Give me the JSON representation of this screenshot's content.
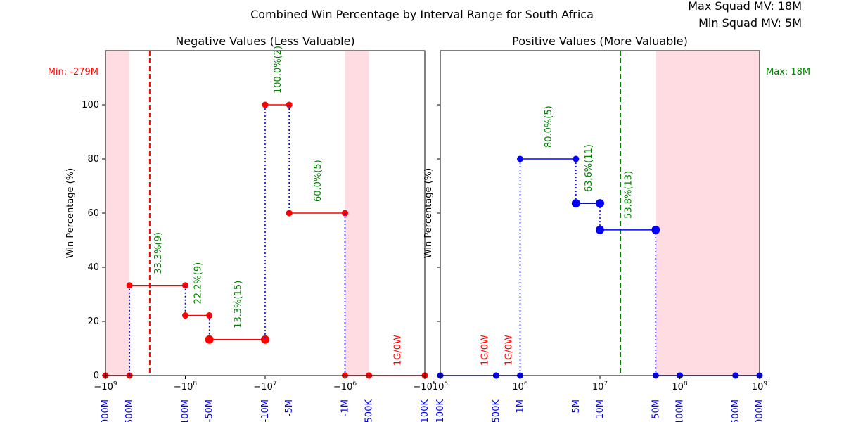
{
  "figure": {
    "title": "Combined Win Percentage by Interval Range for South Africa",
    "corner_max": "Max Squad MV: 18M",
    "corner_min": "Min Squad MV: 5M"
  },
  "colors": {
    "negative_line": "#ff0000",
    "positive_line": "#0000ff",
    "connector": "#0000ff",
    "annotation": "#008000",
    "no_data": "#ff0000",
    "shade": "#ffc0cb",
    "tick_label": "#0000ff",
    "axis": "#000000"
  },
  "chart_data": [
    {
      "type": "line",
      "title": "Negative Values (Less Valuable)",
      "ylabel": "Win Percentage (%)",
      "xscale": "symlog",
      "xlim": [
        -1000000000,
        -100000
      ],
      "ylim": [
        0,
        120
      ],
      "y_ticks": [
        0,
        20,
        40,
        60,
        80,
        100
      ],
      "x_major_ticks": [
        {
          "value": -1000000000,
          "label": "−10^9"
        },
        {
          "value": -100000000,
          "label": "−10^8"
        },
        {
          "value": -10000000,
          "label": "−10^7"
        },
        {
          "value": -1000000,
          "label": "−10^6"
        },
        {
          "value": -100000,
          "label": "−10^5"
        }
      ],
      "interval_ticks": [
        {
          "value": -1000000000,
          "label": "-1000M"
        },
        {
          "value": -500000000,
          "label": "-500M"
        },
        {
          "value": -100000000,
          "label": "-100M"
        },
        {
          "value": -50000000,
          "label": "-50M"
        },
        {
          "value": -10000000,
          "label": "-10M"
        },
        {
          "value": -5000000,
          "label": "-5M"
        },
        {
          "value": -1000000,
          "label": "-1M"
        },
        {
          "value": -500000,
          "label": "-500K"
        },
        {
          "value": -100000,
          "label": "-100K"
        }
      ],
      "segments": [
        {
          "x0": -1000000000,
          "x1": -500000000,
          "win_pct": 0,
          "games": 0
        },
        {
          "x0": -500000000,
          "x1": -100000000,
          "win_pct": 33.3,
          "games": 9,
          "label": "33.3%(9)"
        },
        {
          "x0": -100000000,
          "x1": -50000000,
          "win_pct": 22.2,
          "games": 9,
          "label": "22.2%(9)"
        },
        {
          "x0": -50000000,
          "x1": -10000000,
          "win_pct": 13.3,
          "games": 15,
          "label": "13.3%(15)"
        },
        {
          "x0": -10000000,
          "x1": -5000000,
          "win_pct": 100.0,
          "games": 2,
          "label": "100.0%(2)"
        },
        {
          "x0": -5000000,
          "x1": -1000000,
          "win_pct": 60.0,
          "games": 5,
          "label": "60.0%(5)"
        },
        {
          "x0": -1000000,
          "x1": -500000,
          "win_pct": 0,
          "games": 0
        },
        {
          "x0": -500000,
          "x1": -100000,
          "win_pct": 0,
          "games": 1,
          "label": "1G/0W"
        }
      ],
      "shaded_ranges": [
        [
          -1000000000,
          -500000000
        ],
        [
          -1000000,
          -500000
        ]
      ],
      "reference_line": {
        "value": -279000000,
        "label": "Min: -279M",
        "color": "#ff0000"
      }
    },
    {
      "type": "line",
      "title": "Positive Values (More Valuable)",
      "ylabel": "Win Percentage (%)",
      "xscale": "symlog",
      "xlim": [
        100000,
        1000000000
      ],
      "ylim": [
        0,
        120
      ],
      "y_ticks": [
        0,
        20,
        40,
        60,
        80,
        100
      ],
      "x_major_ticks": [
        {
          "value": 100000,
          "label": "10^5"
        },
        {
          "value": 1000000,
          "label": "10^6"
        },
        {
          "value": 10000000,
          "label": "10^7"
        },
        {
          "value": 100000000,
          "label": "10^8"
        },
        {
          "value": 1000000000,
          "label": "10^9"
        }
      ],
      "interval_ticks": [
        {
          "value": 100000,
          "label": "100K"
        },
        {
          "value": 500000,
          "label": "500K"
        },
        {
          "value": 1000000,
          "label": "1M"
        },
        {
          "value": 5000000,
          "label": "5M"
        },
        {
          "value": 10000000,
          "label": "10M"
        },
        {
          "value": 50000000,
          "label": "50M"
        },
        {
          "value": 100000000,
          "label": "100M"
        },
        {
          "value": 500000000,
          "label": "500M"
        },
        {
          "value": 1000000000,
          "label": "1000M"
        }
      ],
      "segments": [
        {
          "x0": 100000,
          "x1": 500000,
          "win_pct": 0,
          "games": 1,
          "label": "1G/0W"
        },
        {
          "x0": 500000,
          "x1": 1000000,
          "win_pct": 0,
          "games": 1,
          "label": "1G/0W"
        },
        {
          "x0": 1000000,
          "x1": 5000000,
          "win_pct": 80.0,
          "games": 5,
          "label": "80.0%(5)"
        },
        {
          "x0": 5000000,
          "x1": 10000000,
          "win_pct": 63.6,
          "games": 11,
          "label": "63.6%(11)"
        },
        {
          "x0": 10000000,
          "x1": 50000000,
          "win_pct": 53.8,
          "games": 13,
          "label": "53.8%(13)"
        },
        {
          "x0": 50000000,
          "x1": 100000000,
          "win_pct": 0,
          "games": 0
        },
        {
          "x0": 100000000,
          "x1": 500000000,
          "win_pct": 0,
          "games": 0
        },
        {
          "x0": 500000000,
          "x1": 1000000000,
          "win_pct": 0,
          "games": 0
        }
      ],
      "shaded_ranges": [
        [
          50000000,
          100000000
        ],
        [
          100000000,
          500000000
        ],
        [
          500000000,
          1000000000
        ]
      ],
      "reference_line": {
        "value": 18000000,
        "label": "Max: 18M",
        "color": "#008000"
      }
    }
  ]
}
